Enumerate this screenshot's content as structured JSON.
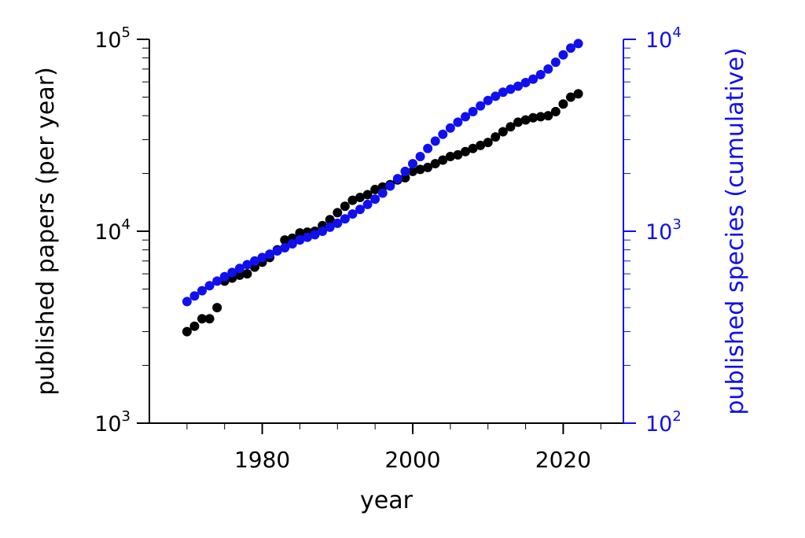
{
  "chart_data": {
    "type": "scatter",
    "title": "",
    "xlabel": "year",
    "ylabel": "published papers (per year)",
    "ylabel_right": "published species (cumulative)",
    "xlim": [
      1965,
      2028
    ],
    "ylim": [
      1000,
      100000
    ],
    "ylim_right": [
      100,
      10000
    ],
    "yscale": "log",
    "yscale_right": "log",
    "grid": false,
    "legend": "none",
    "x_ticks": [
      "1980",
      "2000",
      "2020"
    ],
    "y_ticks": [
      {
        "base": "10",
        "exp": "3"
      },
      {
        "base": "10",
        "exp": "4"
      },
      {
        "base": "10",
        "exp": "5"
      }
    ],
    "y_ticks_right": [
      {
        "base": "10",
        "exp": "2"
      },
      {
        "base": "10",
        "exp": "3"
      },
      {
        "base": "10",
        "exp": "4"
      }
    ],
    "series": [
      {
        "axis": "left",
        "color": "#000000",
        "x": [
          1970,
          1971,
          1972,
          1973,
          1974,
          1975,
          1976,
          1977,
          1978,
          1979,
          1980,
          1981,
          1982,
          1983,
          1984,
          1985,
          1986,
          1987,
          1988,
          1989,
          1990,
          1991,
          1992,
          1993,
          1994,
          1995,
          1996,
          1997,
          1998,
          1999,
          2000,
          2001,
          2002,
          2003,
          2004,
          2005,
          2006,
          2007,
          2008,
          2009,
          2010,
          2011,
          2012,
          2013,
          2014,
          2015,
          2016,
          2017,
          2018,
          2019,
          2020,
          2021,
          2022
        ],
        "y": [
          3000,
          3200,
          3500,
          3500,
          4000,
          5500,
          5700,
          5900,
          6000,
          6500,
          6900,
          7300,
          8000,
          9000,
          9200,
          9800,
          9900,
          10000,
          10700,
          11500,
          12500,
          13500,
          14500,
          15000,
          15500,
          16500,
          17000,
          17500,
          18500,
          19000,
          20500,
          21000,
          21500,
          22500,
          23500,
          24500,
          25000,
          26000,
          27000,
          28000,
          29000,
          31000,
          33000,
          35000,
          37000,
          38000,
          39000,
          39500,
          40000,
          42000,
          46000,
          50000,
          52000
        ]
      },
      {
        "axis": "right",
        "color": "#1010ee",
        "x": [
          1970,
          1971,
          1972,
          1973,
          1974,
          1975,
          1976,
          1977,
          1978,
          1979,
          1980,
          1981,
          1982,
          1983,
          1984,
          1985,
          1986,
          1987,
          1988,
          1989,
          1990,
          1991,
          1992,
          1993,
          1994,
          1995,
          1996,
          1997,
          1998,
          1999,
          2000,
          2001,
          2002,
          2003,
          2004,
          2005,
          2006,
          2007,
          2008,
          2009,
          2010,
          2011,
          2012,
          2013,
          2014,
          2015,
          2016,
          2017,
          2018,
          2019,
          2020,
          2021,
          2022
        ],
        "y": [
          430,
          460,
          490,
          520,
          550,
          580,
          610,
          640,
          670,
          700,
          730,
          760,
          790,
          820,
          860,
          900,
          930,
          960,
          1000,
          1050,
          1100,
          1160,
          1230,
          1300,
          1380,
          1470,
          1580,
          1720,
          1880,
          2050,
          2250,
          2450,
          2700,
          2950,
          3200,
          3450,
          3700,
          3950,
          4200,
          4500,
          4800,
          5050,
          5300,
          5500,
          5700,
          5950,
          6200,
          6550,
          7000,
          7600,
          8300,
          9000,
          9500
        ]
      }
    ]
  }
}
